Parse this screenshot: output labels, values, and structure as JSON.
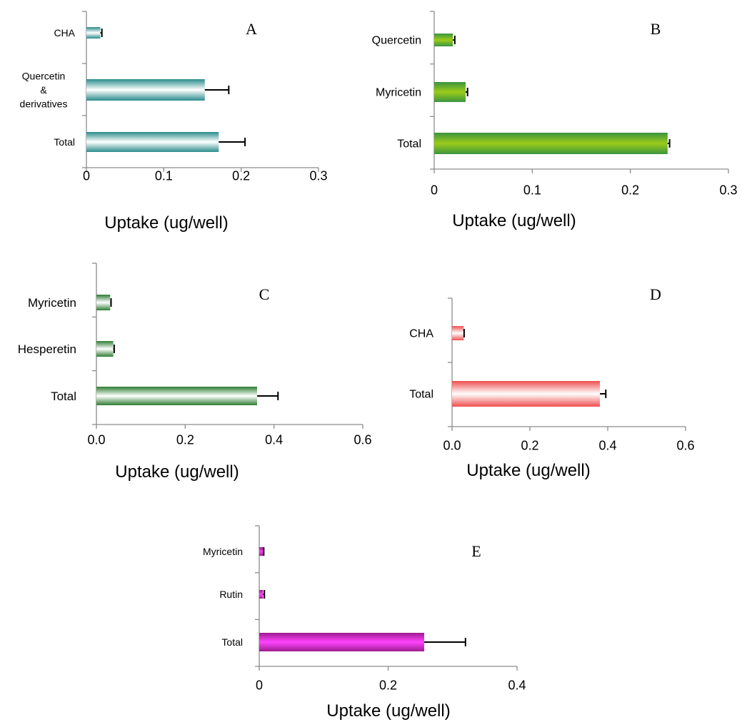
{
  "chart_data": [
    {
      "type": "bar",
      "orientation": "horizontal",
      "panel_label": "A",
      "categories": [
        "CHA",
        "Quercetin\n&\nderivatives",
        "Total"
      ],
      "values": [
        0.018,
        0.153,
        0.171
      ],
      "errors": [
        0.002,
        0.031,
        0.034
      ],
      "xlabel": "Uptake (ug/well)",
      "xlim": [
        0,
        0.3
      ],
      "xticks": [
        "0",
        "0.1",
        "0.2",
        "0.3"
      ],
      "colors": {
        "dark": "#2a8c8c",
        "light": "#ffffff"
      },
      "grid": false
    },
    {
      "type": "bar",
      "orientation": "horizontal",
      "panel_label": "B",
      "categories": [
        "Quercetin",
        "Myricetin",
        "Total"
      ],
      "values": [
        0.019,
        0.032,
        0.238
      ],
      "errors": [
        0.002,
        0.002,
        0.002
      ],
      "xlabel": "Uptake (ug/well)",
      "xlim": [
        0,
        0.3
      ],
      "xticks": [
        "0",
        "0.1",
        "0.2",
        "0.3"
      ],
      "colors": {
        "dark": "#3a9440",
        "light": "#9ccc18"
      },
      "grid": false
    },
    {
      "type": "bar",
      "orientation": "horizontal",
      "panel_label": "C",
      "categories": [
        "Myricetin",
        "Hesperetin",
        "Total"
      ],
      "values": [
        0.031,
        0.038,
        0.362
      ],
      "errors": [
        0.002,
        0.002,
        0.047
      ],
      "xlabel": "Uptake (ug/well)",
      "xlim": [
        0,
        0.6
      ],
      "xticks": [
        "0.0",
        "0.2",
        "0.4",
        "0.6"
      ],
      "colors": {
        "dark": "#2e7d32",
        "light": "#ffffff"
      },
      "grid": false
    },
    {
      "type": "bar",
      "orientation": "horizontal",
      "panel_label": "D",
      "categories": [
        "CHA",
        "Total"
      ],
      "values": [
        0.03,
        0.38
      ],
      "errors": [
        0.001,
        0.015
      ],
      "xlabel": "Uptake (ug/well)",
      "xlim": [
        0,
        0.6
      ],
      "xticks": [
        "0.0",
        "0.2",
        "0.4",
        "0.6"
      ],
      "colors": {
        "dark": "#ef4f4f",
        "light": "#ffffff"
      },
      "grid": false
    },
    {
      "type": "bar",
      "orientation": "horizontal",
      "panel_label": "E",
      "categories": [
        "Myricetin",
        "Rutin",
        "Total"
      ],
      "values": [
        0.006,
        0.006,
        0.256
      ],
      "errors": [
        0.001,
        0.002,
        0.064
      ],
      "xlabel": "Uptake (ug/well)",
      "xlim": [
        0,
        0.4
      ],
      "xticks": [
        "0",
        "0.2",
        "0.4"
      ],
      "colors": {
        "dark": "#9e1b8e",
        "light": "#ff44ff"
      },
      "grid": false
    }
  ]
}
